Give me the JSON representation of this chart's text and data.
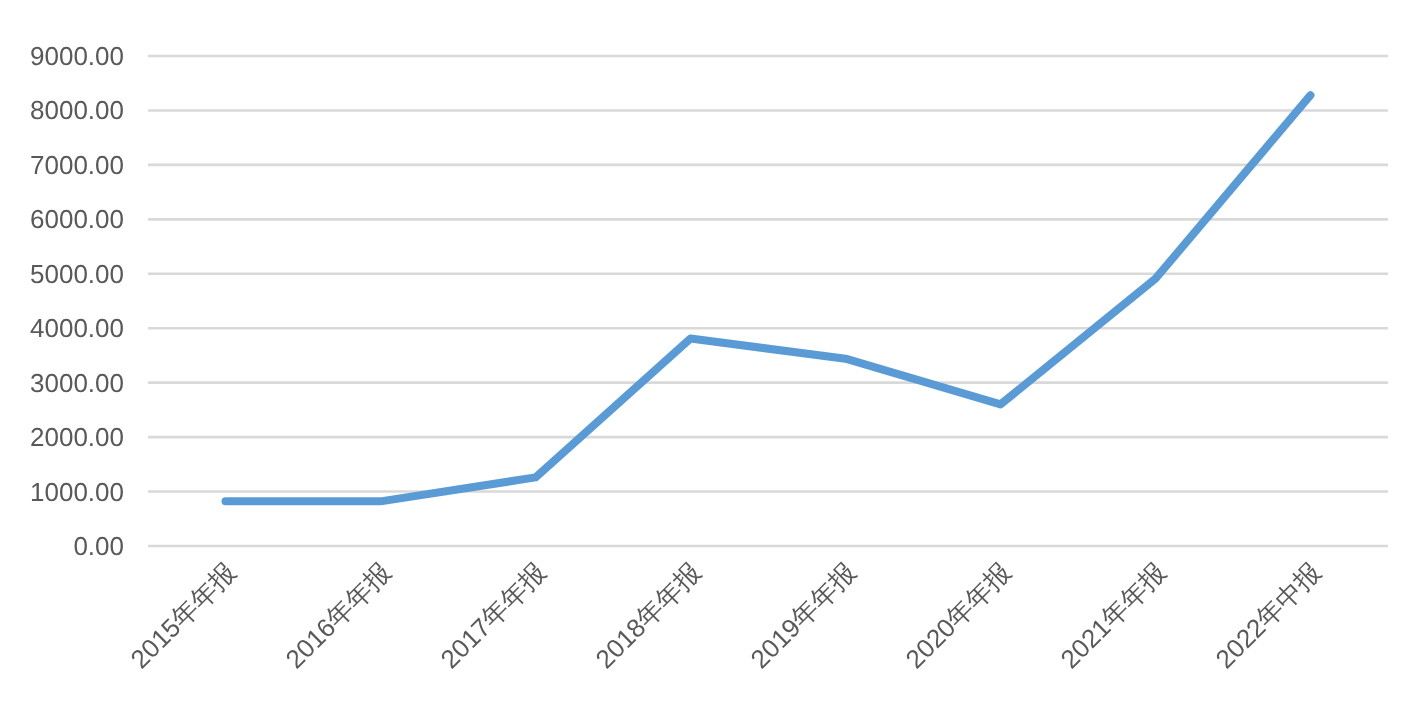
{
  "chart_data": {
    "type": "line",
    "categories": [
      "2015年年报",
      "2016年年报",
      "2017年年报",
      "2018年年报",
      "2019年年报",
      "2020年年报",
      "2021年年报",
      "2022年中报"
    ],
    "values": [
      820,
      820,
      1260,
      3810,
      3440,
      2600,
      4910,
      8280
    ],
    "color": "#5b9bd5",
    "ylim": [
      0,
      9000
    ],
    "yticks": [
      {
        "value": 0,
        "label": "0.00"
      },
      {
        "value": 1000,
        "label": "1000.00"
      },
      {
        "value": 2000,
        "label": "2000.00"
      },
      {
        "value": 3000,
        "label": "3000.00"
      },
      {
        "value": 4000,
        "label": "4000.00"
      },
      {
        "value": 5000,
        "label": "5000.00"
      },
      {
        "value": 6000,
        "label": "6000.00"
      },
      {
        "value": 7000,
        "label": "7000.00"
      },
      {
        "value": 8000,
        "label": "8000.00"
      },
      {
        "value": 9000,
        "label": "9000.00"
      }
    ],
    "grid": "y",
    "line_style": "solid"
  }
}
